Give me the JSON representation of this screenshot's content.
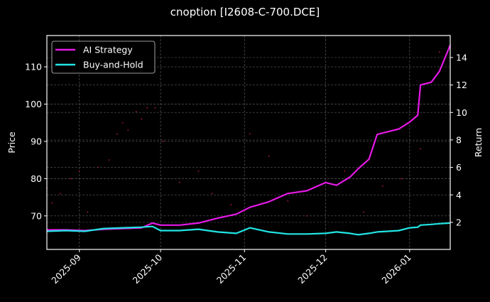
{
  "figure": {
    "title": "cnoption [I2608-C-700.DCE]",
    "background": "#000000"
  },
  "chart_data": {
    "type": "line",
    "title": "cnoption [I2608-C-700.DCE]",
    "xlabel": "",
    "ylabel": "Price",
    "y2label": "Return",
    "x_ticks": [
      "2025-09",
      "2025-10",
      "2025-11",
      "2025-12",
      "2026-01"
    ],
    "x_range": [
      "2025-08-20",
      "2026-01-16"
    ],
    "y_ticks": [
      70,
      80,
      90,
      100,
      110
    ],
    "ylim": [
      61,
      118.4
    ],
    "y2_ticks": [
      2,
      4,
      6,
      8,
      10,
      12,
      14
    ],
    "y2lim": [
      0.03,
      15.6
    ],
    "grid": true,
    "legend_position": "upper left",
    "legend": [
      "AI Strategy",
      "Buy-and-Hold"
    ],
    "series": [
      {
        "name": "AI Strategy",
        "axis": "right",
        "color": "#e619e6",
        "x": [
          "2025-08-20",
          "2025-08-27",
          "2025-09-03",
          "2025-09-10",
          "2025-09-17",
          "2025-09-24",
          "2025-09-28",
          "2025-10-01",
          "2025-10-08",
          "2025-10-15",
          "2025-10-22",
          "2025-10-29",
          "2025-11-03",
          "2025-11-10",
          "2025-11-17",
          "2025-11-24",
          "2025-12-01",
          "2025-12-05",
          "2025-12-10",
          "2025-12-13",
          "2025-12-17",
          "2025-12-20",
          "2025-12-24",
          "2025-12-28",
          "2026-01-01",
          "2026-01-04",
          "2026-01-05",
          "2026-01-09",
          "2026-01-12",
          "2026-01-16"
        ],
        "values": [
          1.45,
          1.45,
          1.4,
          1.5,
          1.55,
          1.6,
          1.95,
          1.8,
          1.8,
          1.95,
          2.3,
          2.6,
          3.1,
          3.5,
          4.1,
          4.3,
          4.9,
          4.7,
          5.3,
          5.9,
          6.6,
          8.4,
          8.6,
          8.8,
          9.3,
          9.8,
          12.0,
          12.2,
          13.0,
          14.9
        ]
      },
      {
        "name": "Buy-and-Hold",
        "axis": "right",
        "color": "#22e5e5",
        "x": [
          "2025-08-20",
          "2025-08-27",
          "2025-09-03",
          "2025-09-10",
          "2025-09-17",
          "2025-09-24",
          "2025-09-28",
          "2025-10-01",
          "2025-10-08",
          "2025-10-15",
          "2025-10-22",
          "2025-10-29",
          "2025-11-03",
          "2025-11-10",
          "2025-11-17",
          "2025-11-24",
          "2025-12-01",
          "2025-12-05",
          "2025-12-10",
          "2025-12-13",
          "2025-12-17",
          "2025-12-20",
          "2025-12-24",
          "2025-12-28",
          "2026-01-01",
          "2026-01-04",
          "2026-01-05",
          "2026-01-09",
          "2026-01-12",
          "2026-01-16"
        ],
        "values": [
          1.35,
          1.4,
          1.35,
          1.55,
          1.6,
          1.65,
          1.7,
          1.4,
          1.4,
          1.5,
          1.3,
          1.2,
          1.6,
          1.3,
          1.15,
          1.15,
          1.2,
          1.3,
          1.2,
          1.1,
          1.2,
          1.3,
          1.35,
          1.4,
          1.6,
          1.65,
          1.8,
          1.85,
          1.9,
          1.95
        ]
      },
      {
        "name": "Price (scatter)",
        "axis": "left",
        "type": "scatter",
        "color": "#8b1a2a",
        "x": [
          "2025-08-20",
          "2025-08-22",
          "2025-08-25",
          "2025-08-29",
          "2025-09-01",
          "2025-09-04",
          "2025-09-08",
          "2025-09-12",
          "2025-09-15",
          "2025-09-17",
          "2025-09-19",
          "2025-09-22",
          "2025-09-24",
          "2025-09-26",
          "2025-09-29",
          "2025-10-02",
          "2025-10-08",
          "2025-10-15",
          "2025-10-20",
          "2025-10-27",
          "2025-11-03",
          "2025-11-10",
          "2025-11-17",
          "2025-11-24",
          "2025-12-01",
          "2025-12-08",
          "2025-12-15",
          "2025-12-22",
          "2025-12-29",
          "2026-01-05",
          "2026-01-12"
        ],
        "values": [
          77.5,
          73.5,
          76,
          80,
          82,
          71,
          83,
          85,
          92,
          95,
          93,
          98,
          96,
          99,
          99,
          90,
          79,
          82,
          76,
          73,
          92,
          86,
          74,
          70,
          79,
          82,
          71,
          78,
          80,
          88,
          114
        ]
      }
    ]
  }
}
